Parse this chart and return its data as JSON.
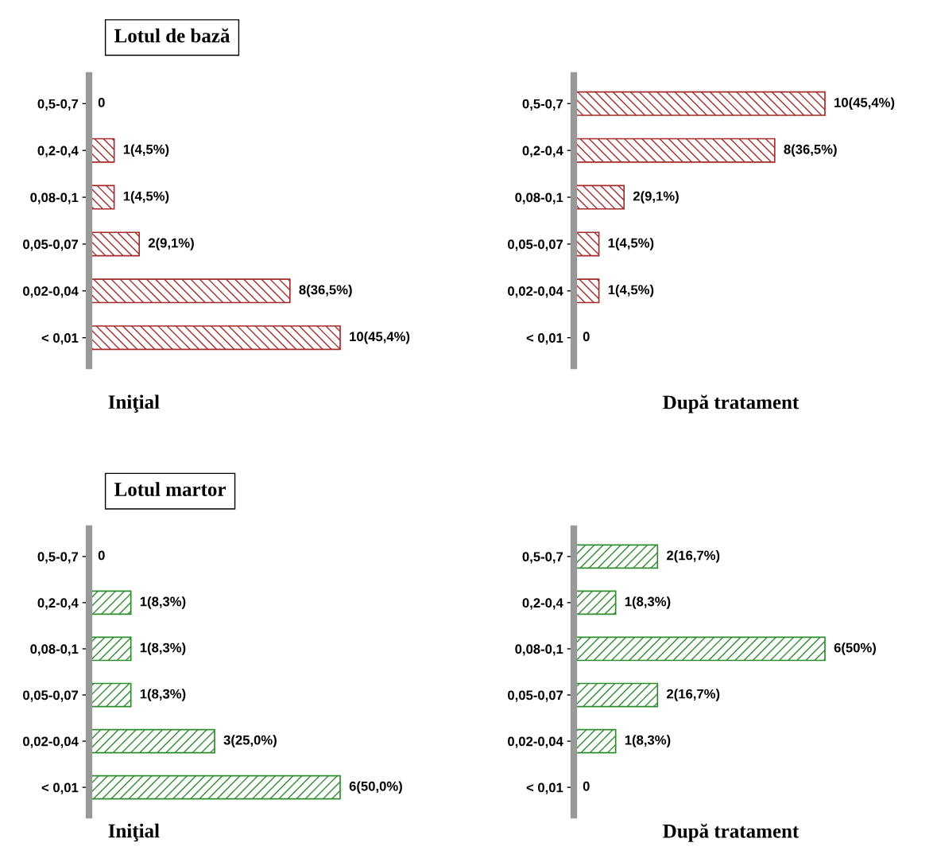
{
  "chart_data": [
    {
      "type": "bar",
      "orientation": "horizontal",
      "title": "Lotul de bază",
      "xlabel": "Iniţial",
      "tick_labels": "y",
      "categories": [
        "0,5-0,7",
        "0,2-0,4",
        "0,08-0,1",
        "0,05-0,07",
        "0,02-0,04",
        "< 0,01"
      ],
      "series": [
        {
          "color": "#a52a2a",
          "values": [
            0,
            1,
            1,
            2,
            8,
            10
          ],
          "value_labels": [
            "0",
            "1(4,5%)",
            "1(4,5%)",
            "2(9,1%)",
            "8(36,5%)",
            "10(45,4%)"
          ]
        }
      ]
    },
    {
      "type": "bar",
      "orientation": "horizontal",
      "xlabel": "După tratament",
      "tick_labels": "y",
      "categories": [
        "0,5-0,7",
        "0,2-0,4",
        "0,08-0,1",
        "0,05-0,07",
        "0,02-0,04",
        "< 0,01"
      ],
      "series": [
        {
          "color": "#a52a2a",
          "values": [
            10,
            8,
            2,
            1,
            1,
            0
          ],
          "value_labels": [
            "10(45,4%)",
            "8(36,5%)",
            "2(9,1%)",
            "1(4,5%)",
            "1(4,5%)",
            "0"
          ]
        }
      ]
    },
    {
      "type": "bar",
      "orientation": "horizontal",
      "title": "Lotul martor",
      "xlabel": "Iniţial",
      "tick_labels": "y",
      "categories": [
        "0,5-0,7",
        "0,2-0,4",
        "0,08-0,1",
        "0,05-0,07",
        "0,02-0,04",
        "< 0,01"
      ],
      "series": [
        {
          "color": "#2e8b2e",
          "values": [
            0,
            1,
            1,
            1,
            3,
            6
          ],
          "value_labels": [
            "0",
            "1(8,3%)",
            "1(8,3%)",
            "1(8,3%)",
            "3(25,0%)",
            "6(50,0%)"
          ]
        }
      ]
    },
    {
      "type": "bar",
      "orientation": "horizontal",
      "xlabel": "După tratament",
      "tick_labels": "y",
      "categories": [
        "0,5-0,7",
        "0,2-0,4",
        "0,08-0,1",
        "0,05-0,07",
        "0,02-0,04",
        "< 0,01"
      ],
      "series": [
        {
          "color": "#2e8b2e",
          "values": [
            2,
            1,
            6,
            2,
            1,
            0
          ],
          "value_labels": [
            "2(16,7%)",
            "1(8,3%)",
            "6(50%)",
            "2(16,7%)",
            "1(8,3%)",
            "0"
          ]
        }
      ]
    }
  ]
}
